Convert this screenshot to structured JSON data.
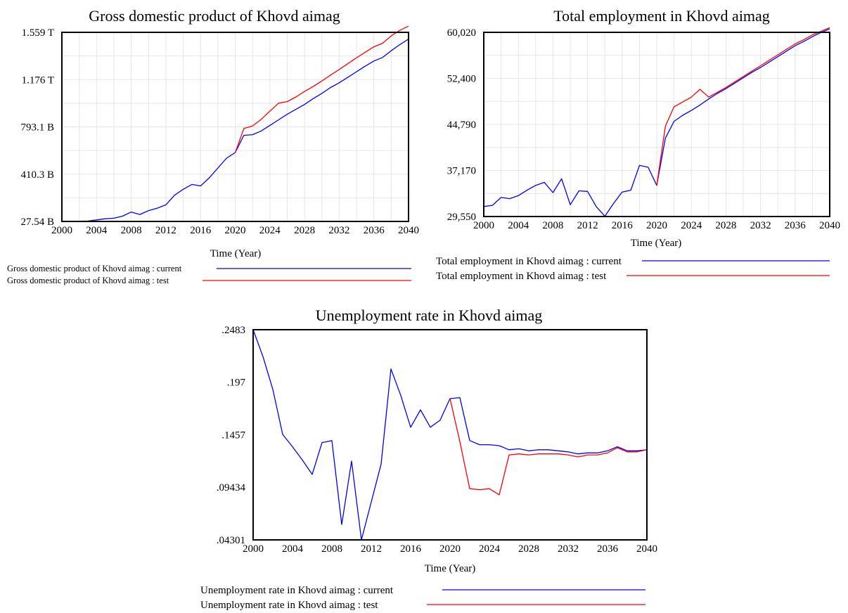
{
  "chart_data": [
    {
      "type": "line",
      "title": "Gross domestic product of Khovd aimag",
      "xlabel": "Time (Year)",
      "ylabel": "",
      "xlim": [
        2000,
        2040
      ],
      "ylim": [
        27.54,
        1559
      ],
      "x_ticks": [
        "2000",
        "2004",
        "2008",
        "2012",
        "2016",
        "2020",
        "2024",
        "2028",
        "2032",
        "2036",
        "2040"
      ],
      "y_ticks": [
        {
          "value": 27.54,
          "label": "27.54 B"
        },
        {
          "value": 410.3,
          "label": "410.3 B"
        },
        {
          "value": 793.1,
          "label": "793.1 B"
        },
        {
          "value": 1176,
          "label": "1.176 T"
        },
        {
          "value": 1559,
          "label": "1.559 T"
        }
      ],
      "grid": true,
      "legend": "below-left",
      "series": [
        {
          "name": "Gross domestic product of Khovd aimag : current",
          "color": "#0000ff",
          "x": [
            2000,
            2001,
            2002,
            2003,
            2004,
            2005,
            2006,
            2007,
            2008,
            2009,
            2010,
            2011,
            2012,
            2013,
            2014,
            2015,
            2016,
            2017,
            2018,
            2019,
            2020,
            2021,
            2022,
            2023,
            2024,
            2025,
            2026,
            2027,
            2028,
            2029,
            2030,
            2031,
            2032,
            2033,
            2034,
            2035,
            2036,
            2037,
            2038,
            2039,
            2040
          ],
          "y": [
            27.5,
            28,
            29,
            31,
            40,
            49,
            54,
            70,
            104,
            84,
            115,
            135,
            162,
            240,
            288,
            327,
            315,
            380,
            460,
            540,
            585,
            725,
            730,
            760,
            805,
            850,
            895,
            935,
            975,
            1022,
            1065,
            1112,
            1150,
            1195,
            1240,
            1285,
            1327,
            1355,
            1410,
            1460,
            1505
          ]
        },
        {
          "name": "Gross domestic product of Khovd aimag : test",
          "color": "#ff0000",
          "x": [
            2020,
            2021,
            2022,
            2023,
            2024,
            2025,
            2026,
            2027,
            2028,
            2029,
            2030,
            2031,
            2032,
            2033,
            2034,
            2035,
            2036,
            2037,
            2038,
            2039,
            2040
          ],
          "y": [
            585,
            780,
            800,
            855,
            920,
            985,
            998,
            1035,
            1080,
            1120,
            1165,
            1213,
            1258,
            1305,
            1353,
            1398,
            1442,
            1470,
            1530,
            1575,
            1609
          ]
        }
      ]
    },
    {
      "type": "line",
      "title": "Total employment in Khovd aimag",
      "xlabel": "Time (Year)",
      "ylabel": "",
      "xlim": [
        2000,
        2040
      ],
      "ylim": [
        29550,
        60020
      ],
      "x_ticks": [
        "2000",
        "2004",
        "2008",
        "2012",
        "2016",
        "2020",
        "2024",
        "2028",
        "2032",
        "2036",
        "2040"
      ],
      "y_ticks": [
        {
          "value": 29550,
          "label": "29,550"
        },
        {
          "value": 37170,
          "label": "37,170"
        },
        {
          "value": 44790,
          "label": "44,790"
        },
        {
          "value": 52400,
          "label": "52,400"
        },
        {
          "value": 60020,
          "label": "60,020"
        }
      ],
      "grid": true,
      "legend": "below-right",
      "series": [
        {
          "name": "Total employment in Khovd aimag : current",
          "color": "#0000ff",
          "x": [
            2000,
            2001,
            2002,
            2003,
            2004,
            2005,
            2006,
            2007,
            2008,
            2009,
            2010,
            2011,
            2012,
            2013,
            2014,
            2015,
            2016,
            2017,
            2018,
            2019,
            2020,
            2021,
            2022,
            2023,
            2024,
            2025,
            2026,
            2027,
            2028,
            2029,
            2030,
            2031,
            2032,
            2033,
            2034,
            2035,
            2036,
            2037,
            2038,
            2039,
            2040
          ],
          "y": [
            31200,
            31400,
            32700,
            32500,
            33000,
            33900,
            34700,
            35200,
            33500,
            35800,
            31500,
            33800,
            33700,
            31200,
            29600,
            31700,
            33600,
            33900,
            38000,
            37700,
            34700,
            42500,
            45300,
            46300,
            47100,
            48000,
            49000,
            49900,
            50700,
            51600,
            52500,
            53400,
            54200,
            55100,
            56000,
            56900,
            57800,
            58500,
            59300,
            60000,
            60600
          ]
        },
        {
          "name": "Total employment in Khovd aimag : test",
          "color": "#ff0000",
          "x": [
            2020,
            2021,
            2022,
            2023,
            2024,
            2025,
            2026,
            2027,
            2028,
            2029,
            2030,
            2031,
            2032,
            2033,
            2034,
            2035,
            2036,
            2037,
            2038,
            2039,
            2040
          ],
          "y": [
            34700,
            44500,
            47700,
            48500,
            49300,
            50600,
            49300,
            50100,
            50900,
            51800,
            52700,
            53600,
            54500,
            55400,
            56300,
            57200,
            58100,
            58800,
            59600,
            60200,
            60800
          ]
        }
      ]
    },
    {
      "type": "line",
      "title": "Unemployment rate in Khovd aimag",
      "xlabel": "Time (Year)",
      "ylabel": "",
      "xlim": [
        2000,
        2040
      ],
      "ylim": [
        0.04301,
        0.2483
      ],
      "x_ticks": [
        "2000",
        "2004",
        "2008",
        "2012",
        "2016",
        "2020",
        "2024",
        "2028",
        "2032",
        "2036",
        "2040"
      ],
      "y_ticks": [
        {
          "value": 0.04301,
          "label": ".04301"
        },
        {
          "value": 0.09434,
          "label": ".09434"
        },
        {
          "value": 0.1457,
          "label": ".1457"
        },
        {
          "value": 0.197,
          "label": ".197"
        },
        {
          "value": 0.2483,
          "label": ".2483"
        }
      ],
      "grid": false,
      "legend": "below-center",
      "series": [
        {
          "name": "Unemployment rate in Khovd aimag : current",
          "color": "#0000ff",
          "x": [
            2000,
            2001,
            2002,
            2003,
            2004,
            2005,
            2006,
            2007,
            2008,
            2009,
            2010,
            2011,
            2012,
            2013,
            2014,
            2015,
            2016,
            2017,
            2018,
            2019,
            2020,
            2021,
            2022,
            2023,
            2024,
            2025,
            2026,
            2027,
            2028,
            2029,
            2030,
            2031,
            2032,
            2033,
            2034,
            2035,
            2036,
            2037,
            2038,
            2039,
            2040
          ],
          "y": [
            0.2483,
            0.222,
            0.19,
            0.146,
            0.134,
            0.121,
            0.107,
            0.138,
            0.14,
            0.058,
            0.12,
            0.043,
            0.08,
            0.117,
            0.21,
            0.184,
            0.153,
            0.17,
            0.153,
            0.16,
            0.181,
            0.182,
            0.14,
            0.136,
            0.136,
            0.135,
            0.131,
            0.132,
            0.13,
            0.131,
            0.131,
            0.13,
            0.129,
            0.127,
            0.128,
            0.128,
            0.13,
            0.134,
            0.13,
            0.13,
            0.131
          ]
        },
        {
          "name": "Unemployment rate in Khovd aimag : test",
          "color": "#ff0000",
          "x": [
            2020,
            2021,
            2022,
            2023,
            2024,
            2025,
            2026,
            2027,
            2028,
            2029,
            2030,
            2031,
            2032,
            2033,
            2034,
            2035,
            2036,
            2037,
            2038,
            2039,
            2040
          ],
          "y": [
            0.181,
            0.139,
            0.093,
            0.092,
            0.093,
            0.087,
            0.126,
            0.127,
            0.126,
            0.127,
            0.127,
            0.127,
            0.126,
            0.124,
            0.126,
            0.126,
            0.128,
            0.133,
            0.129,
            0.129,
            0.131
          ]
        }
      ]
    }
  ]
}
